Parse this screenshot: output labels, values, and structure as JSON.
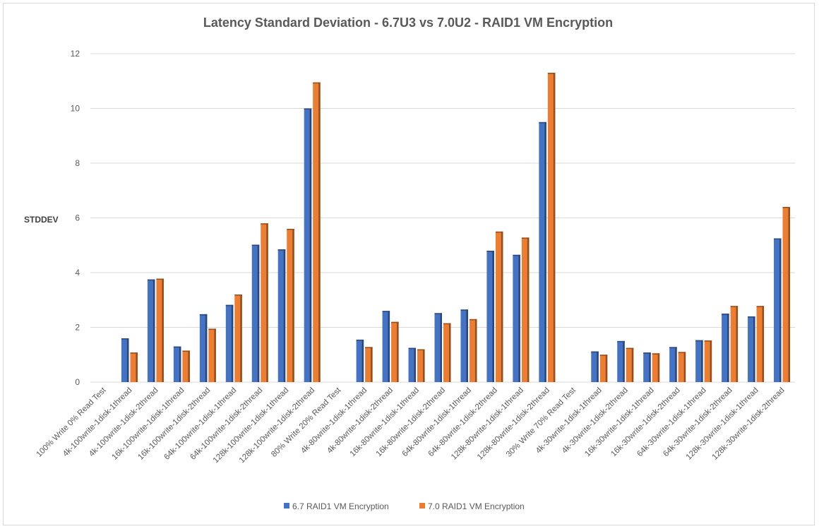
{
  "chart_data": {
    "type": "bar",
    "title": "Latency Standard Deviation - 6.7U3 vs 7.0U2 - RAID1 VM Encryption",
    "xlabel": "",
    "ylabel": "STDDEV",
    "ylim": [
      0,
      12
    ],
    "yticks": [
      "0",
      "2",
      "4",
      "6",
      "8",
      "10",
      "12"
    ],
    "grid": true,
    "legend_position": "bottom",
    "categories": [
      "100% Write 0% Read Test",
      "4k-100write-1disk-1thread",
      "4k-100write-1disk-2thread",
      "16k-100write-1disk-1thread",
      "16k-100write-1disk-2thread",
      "64k-100write-1disk-1thread",
      "64k-100write-1disk-2thread",
      "128k-100write-1disk-1thread",
      "128k-100write-1disk-2thread",
      "80% Write 20% Read Test",
      "4k-80write-1disk-1thread",
      "4k-80write-1disk-2thread",
      "16k-80write-1disk-1thread",
      "16k-80write-1disk-2thread",
      "64k-80write-1disk-1thread",
      "64k-80write-1disk-2thread",
      "128k-80write-1disk-1thread",
      "128k-80write-1disk-2thread",
      "30% Write 70% Read Test",
      "4k-30write-1disk-1thread",
      "4k-30write-1disk-2thread",
      "16k-30write-1disk-1thread",
      "16k-30write-1disk-2thread",
      "64k-30write-1disk-1thread",
      "64k-30write-1disk-2thread",
      "128k-30write-1disk-1thread",
      "128k-30write-1disk-2thread"
    ],
    "series": [
      {
        "name": "6.7 RAID1 VM Encryption",
        "color": "#4472c4",
        "values": [
          null,
          1.6,
          3.75,
          1.3,
          2.48,
          2.82,
          5.02,
          4.85,
          10.0,
          null,
          1.55,
          2.6,
          1.25,
          2.52,
          2.65,
          4.8,
          4.65,
          9.5,
          null,
          1.12,
          1.5,
          1.08,
          1.28,
          1.53,
          2.5,
          2.4,
          5.25
        ]
      },
      {
        "name": "7.0 RAID1 VM Encryption",
        "color": "#ed7d31",
        "values": [
          null,
          1.08,
          3.78,
          1.15,
          1.95,
          3.2,
          5.8,
          5.6,
          10.95,
          null,
          1.28,
          2.2,
          1.2,
          2.15,
          2.3,
          5.5,
          5.28,
          11.3,
          null,
          1.0,
          1.25,
          1.05,
          1.1,
          1.52,
          2.78,
          2.78,
          6.4
        ]
      }
    ]
  }
}
